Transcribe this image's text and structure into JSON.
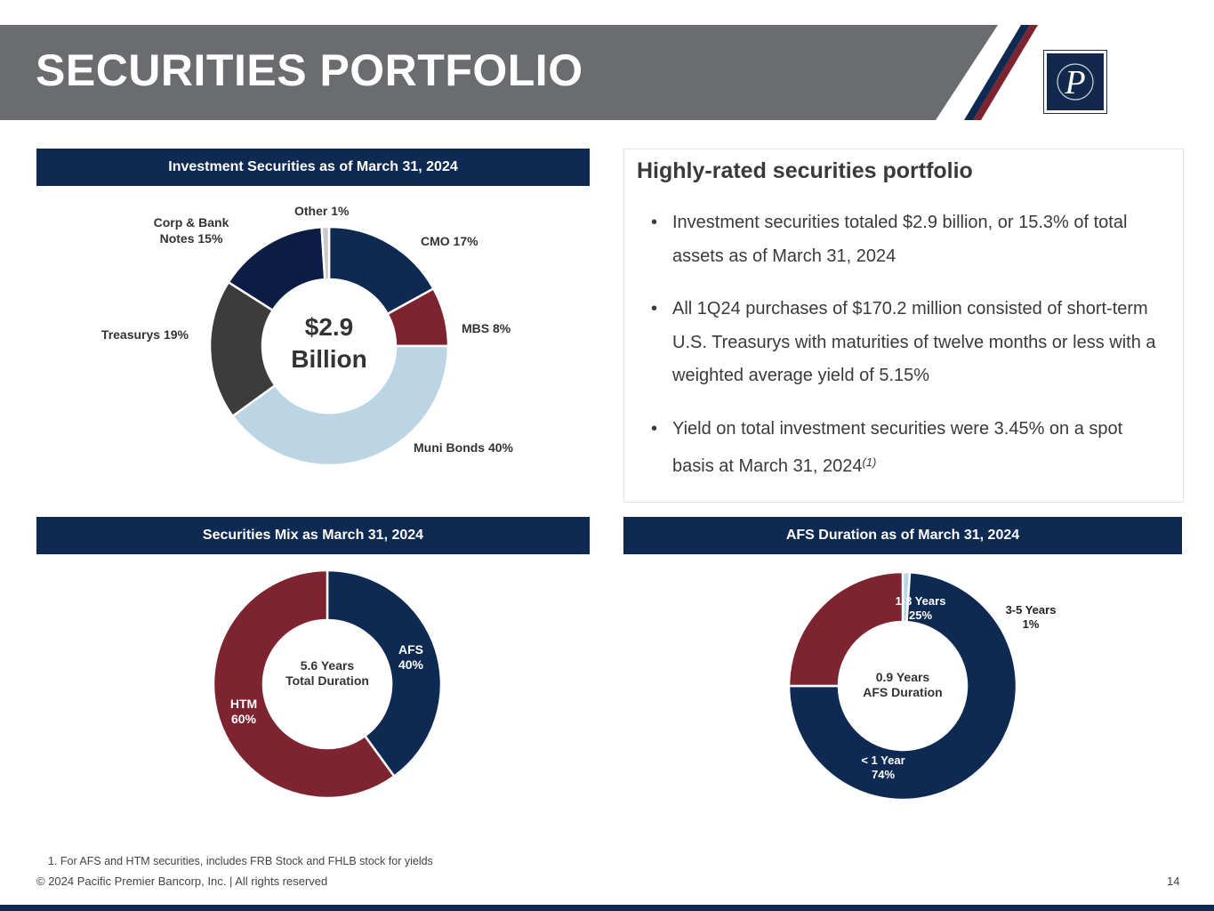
{
  "header": {
    "title": "SECURITIES PORTFOLIO",
    "logo_letter": "P"
  },
  "colors": {
    "navy": "#0f2a52",
    "maroon": "#7d2430",
    "gray_header": "#6b6c6f",
    "light_blue": "#bcd5e5",
    "charcoal": "#3b3c3b",
    "dark_navy": "#0b1d42",
    "light_gray": "#c9c9c9"
  },
  "panels": {
    "investment_title": "Investment Securities as of March 31, 2024",
    "mix_title": "Securities Mix as March 31, 2024",
    "duration_title": "AFS Duration as of March 31, 2024"
  },
  "highlights": {
    "heading": "Highly-rated securities portfolio",
    "bullets": [
      "Investment securities totaled $2.9 billion, or 15.3% of total assets as of March 31, 2024",
      "All 1Q24 purchases of $170.2 million consisted of short-term U.S. Treasurys with maturities of twelve months or less with a weighted average yield of 5.15%",
      "Yield on total investment securities were 3.45% on a spot basis at March 31, 2024"
    ],
    "bullet3_footnote_ref": "(1)"
  },
  "chart_data": [
    {
      "type": "pie",
      "title": "Investment Securities as of March 31, 2024",
      "center_label": [
        "$2.9",
        "Billion"
      ],
      "categories": [
        "CMO",
        "MBS",
        "Muni Bonds",
        "Treasurys",
        "Corp & Bank Notes",
        "Other"
      ],
      "values": [
        17,
        8,
        40,
        19,
        15,
        1
      ],
      "labels": [
        "CMO 17%",
        "MBS 8%",
        "Muni Bonds 40%",
        "Treasurys 19%",
        "Corp & Bank Notes 15%",
        "Other  1%"
      ],
      "colors": [
        "#0f2a52",
        "#7d2430",
        "#bcd5e5",
        "#3b3c3b",
        "#0b1d42",
        "#c9c9c9"
      ]
    },
    {
      "type": "pie",
      "title": "Securities Mix as March 31, 2024",
      "center_label": [
        "5.6 Years",
        "Total Duration"
      ],
      "categories": [
        "AFS",
        "HTM"
      ],
      "values": [
        40,
        60
      ],
      "labels": [
        [
          "AFS",
          "40%"
        ],
        [
          "HTM",
          "60%"
        ]
      ],
      "colors": [
        "#0f2a52",
        "#7d2430"
      ]
    },
    {
      "type": "pie",
      "title": "AFS Duration as of March 31, 2024",
      "center_label": [
        "0.9 Years",
        "AFS Duration"
      ],
      "categories": [
        "3-5 Years",
        "< 1 Year",
        "1-3 Years"
      ],
      "values": [
        1,
        74,
        25
      ],
      "labels": [
        [
          "3-5 Years",
          "1%"
        ],
        [
          "< 1 Year",
          "74%"
        ],
        [
          "1-3 Years",
          "25%"
        ]
      ],
      "colors": [
        "#bcd5e5",
        "#0f2a52",
        "#7d2430"
      ]
    }
  ],
  "footer": {
    "footnote": "1. For AFS and HTM securities, includes FRB Stock and FHLB stock for yields",
    "copyright": "© 2024 Pacific Premier Bancorp, Inc. | All rights reserved",
    "page_number": "14"
  }
}
